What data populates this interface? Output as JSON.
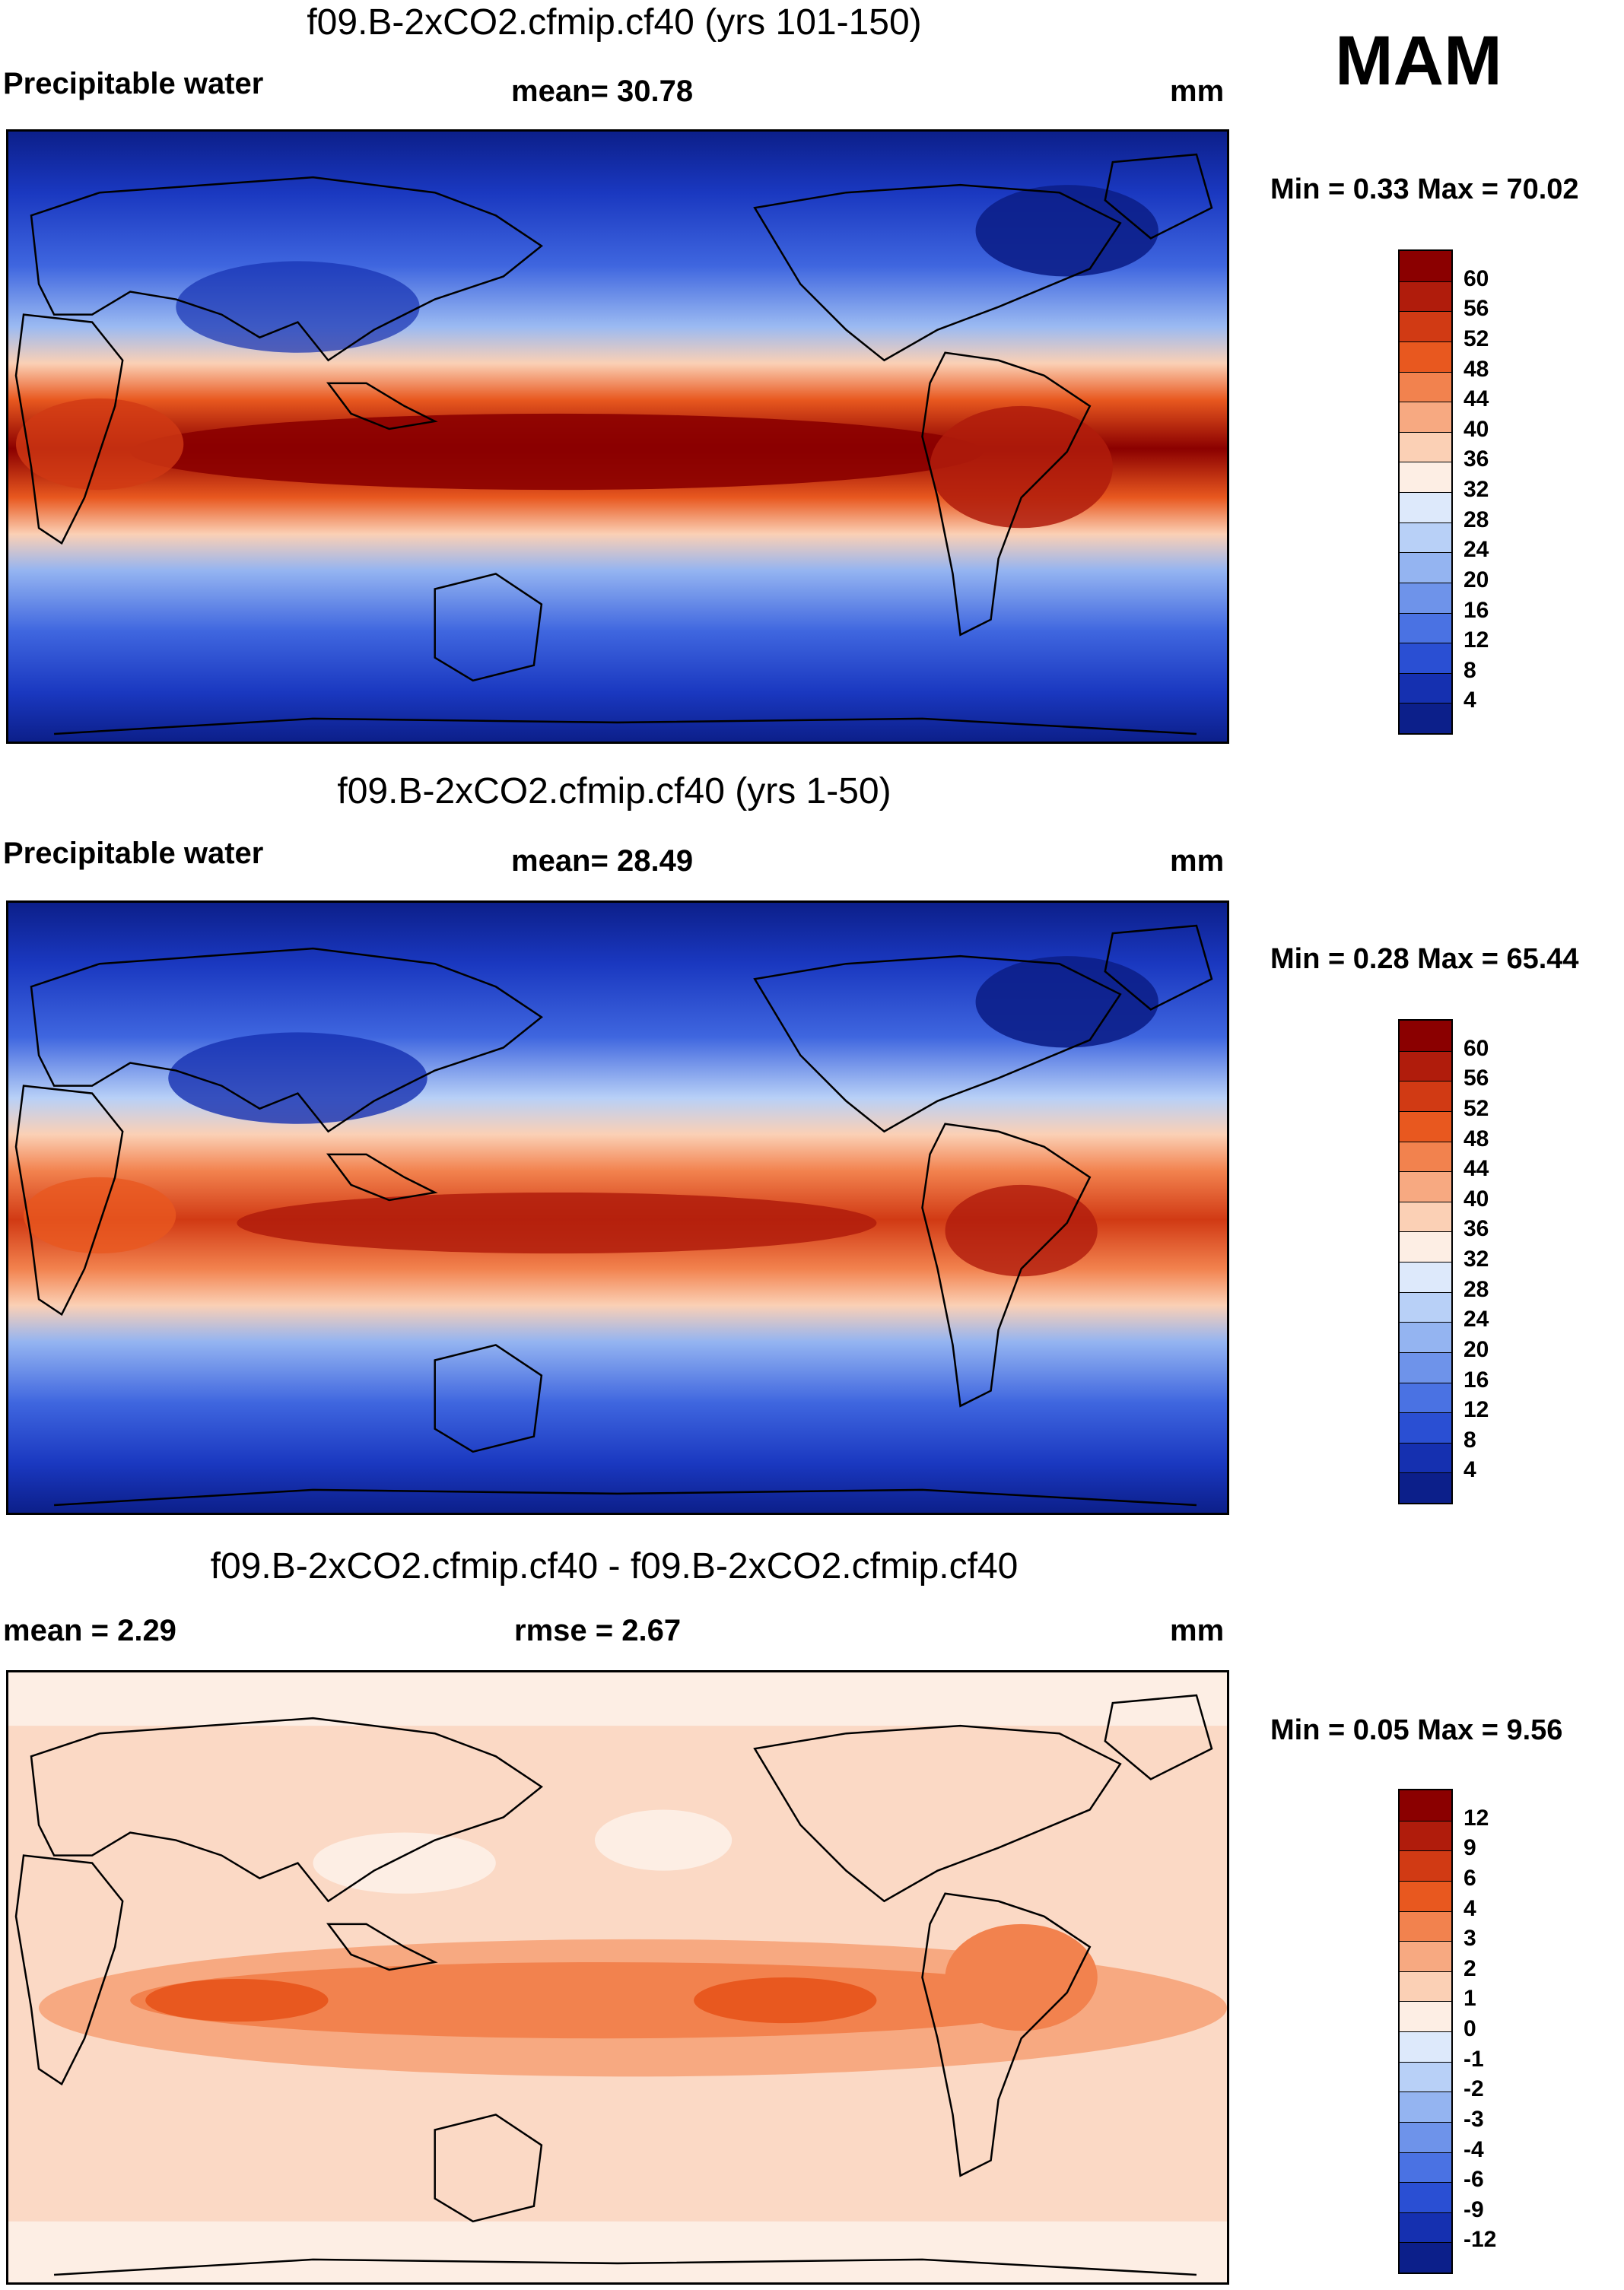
{
  "season": "MAM",
  "units_symbol": "mm",
  "panels": [
    {
      "title": "f09.B-2xCO2.cfmip.cf40 (yrs 101-150)",
      "variable": "Precipitable water",
      "stat1": "mean=  30.78",
      "stat2": "",
      "units": "mm",
      "minmax": "Min =   0.33 Max =  70.02",
      "colorbar_labels": [
        "60",
        "56",
        "52",
        "48",
        "44",
        "40",
        "36",
        "32",
        "28",
        "24",
        "20",
        "16",
        "12",
        "8",
        "4"
      ],
      "colorbar_colors": [
        "#8b0000",
        "#b01c0c",
        "#d13a14",
        "#e8581f",
        "#f2824e",
        "#f7a981",
        "#fbd0b5",
        "#fdeee4",
        "#dde9fb",
        "#b8d0f7",
        "#94b4f1",
        "#6e93ea",
        "#4a72e3",
        "#2a4fd3",
        "#1530b0",
        "#0c1f8a"
      ]
    },
    {
      "title": "f09.B-2xCO2.cfmip.cf40 (yrs 1-50)",
      "variable": "Precipitable water",
      "stat1": "mean=  28.49",
      "stat2": "",
      "units": "mm",
      "minmax": "Min =   0.28 Max =  65.44",
      "colorbar_labels": [
        "60",
        "56",
        "52",
        "48",
        "44",
        "40",
        "36",
        "32",
        "28",
        "24",
        "20",
        "16",
        "12",
        "8",
        "4"
      ],
      "colorbar_colors": [
        "#8b0000",
        "#b01c0c",
        "#d13a14",
        "#e8581f",
        "#f2824e",
        "#f7a981",
        "#fbd0b5",
        "#fdeee4",
        "#dde9fb",
        "#b8d0f7",
        "#94b4f1",
        "#6e93ea",
        "#4a72e3",
        "#2a4fd3",
        "#1530b0",
        "#0c1f8a"
      ]
    },
    {
      "title": "f09.B-2xCO2.cfmip.cf40 - f09.B-2xCO2.cfmip.cf40",
      "variable": "mean =   2.29",
      "stat1": "rmse =   2.67",
      "stat2": "",
      "units": "mm",
      "minmax": "Min =   0.05 Max =   9.56",
      "colorbar_labels": [
        "12",
        "9",
        "6",
        "4",
        "3",
        "2",
        "1",
        "0",
        "-1",
        "-2",
        "-3",
        "-4",
        "-6",
        "-9",
        "-12"
      ],
      "colorbar_colors": [
        "#8b0000",
        "#b01c0c",
        "#d13a14",
        "#e8581f",
        "#f2824e",
        "#f7a981",
        "#fbd0b5",
        "#fdeee4",
        "#dde9fb",
        "#b8d0f7",
        "#94b4f1",
        "#6e93ea",
        "#4a72e3",
        "#2a4fd3",
        "#1530b0",
        "#0c1f8a"
      ]
    }
  ],
  "chart_data": [
    {
      "type": "heatmap",
      "title": "f09.B-2xCO2.cfmip.cf40 (yrs 101-150)",
      "variable": "Precipitable water",
      "units": "mm",
      "mean": 30.78,
      "min": 0.33,
      "max": 70.02,
      "contour_levels": [
        4,
        8,
        12,
        16,
        20,
        24,
        28,
        32,
        36,
        40,
        44,
        48,
        52,
        56,
        60
      ]
    },
    {
      "type": "heatmap",
      "title": "f09.B-2xCO2.cfmip.cf40 (yrs 1-50)",
      "variable": "Precipitable water",
      "units": "mm",
      "mean": 28.49,
      "min": 0.28,
      "max": 65.44,
      "contour_levels": [
        4,
        8,
        12,
        16,
        20,
        24,
        28,
        32,
        36,
        40,
        44,
        48,
        52,
        56,
        60
      ]
    },
    {
      "type": "heatmap",
      "title": "f09.B-2xCO2.cfmip.cf40 - f09.B-2xCO2.cfmip.cf40",
      "units": "mm",
      "mean": 2.29,
      "rmse": 2.67,
      "min": 0.05,
      "max": 9.56,
      "contour_levels": [
        -12,
        -9,
        -6,
        -4,
        -3,
        -2,
        -1,
        0,
        1,
        2,
        3,
        4,
        6,
        9,
        12
      ]
    }
  ]
}
